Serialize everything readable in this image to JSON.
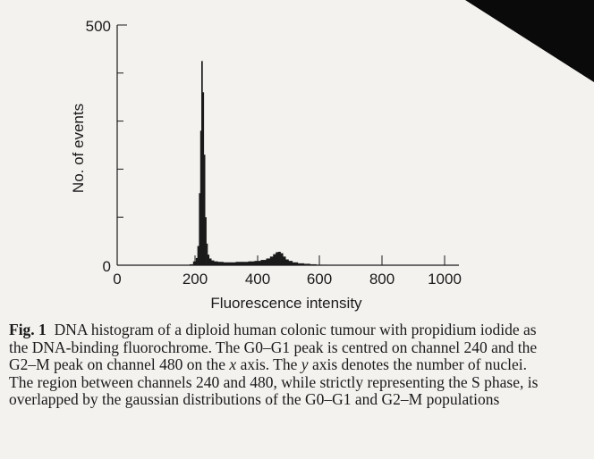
{
  "chart_data": {
    "type": "bar",
    "xlabel": "Fluorescence intensity",
    "ylabel": "No. of events",
    "xlim": [
      0,
      1000
    ],
    "ylim": [
      0,
      500
    ],
    "x_ticks": [
      "0",
      "200",
      "400",
      "600",
      "800",
      "1000"
    ],
    "y_ticks": [
      "0",
      "500"
    ],
    "grid": false,
    "legend": "none",
    "bar_color": "#1a1a1a",
    "bins": [
      {
        "x": 190,
        "y": 2
      },
      {
        "x": 200,
        "y": 8
      },
      {
        "x": 205,
        "y": 15
      },
      {
        "x": 210,
        "y": 40
      },
      {
        "x": 215,
        "y": 150
      },
      {
        "x": 218,
        "y": 280
      },
      {
        "x": 222,
        "y": 425
      },
      {
        "x": 226,
        "y": 360
      },
      {
        "x": 230,
        "y": 230
      },
      {
        "x": 234,
        "y": 100
      },
      {
        "x": 238,
        "y": 45
      },
      {
        "x": 242,
        "y": 22
      },
      {
        "x": 248,
        "y": 14
      },
      {
        "x": 256,
        "y": 10
      },
      {
        "x": 265,
        "y": 8
      },
      {
        "x": 280,
        "y": 7
      },
      {
        "x": 300,
        "y": 6
      },
      {
        "x": 320,
        "y": 6
      },
      {
        "x": 340,
        "y": 7
      },
      {
        "x": 360,
        "y": 7
      },
      {
        "x": 380,
        "y": 8
      },
      {
        "x": 400,
        "y": 9
      },
      {
        "x": 420,
        "y": 11
      },
      {
        "x": 435,
        "y": 14
      },
      {
        "x": 445,
        "y": 18
      },
      {
        "x": 455,
        "y": 23
      },
      {
        "x": 462,
        "y": 27
      },
      {
        "x": 470,
        "y": 28
      },
      {
        "x": 478,
        "y": 25
      },
      {
        "x": 486,
        "y": 18
      },
      {
        "x": 495,
        "y": 12
      },
      {
        "x": 505,
        "y": 9
      },
      {
        "x": 520,
        "y": 6
      },
      {
        "x": 540,
        "y": 4
      },
      {
        "x": 560,
        "y": 3
      },
      {
        "x": 580,
        "y": 2
      },
      {
        "x": 600,
        "y": 1
      },
      {
        "x": 620,
        "y": 1
      }
    ]
  },
  "caption": {
    "label": "Fig. 1",
    "part1": "DNA histogram of a diploid human colonic tumour with propidium iodide as the DNA-binding fluorochrome. The G0–G1 peak is centred on channel 240 and the G2–M peak on channel 480 on the ",
    "x_word": "x",
    "part2": " axis. The ",
    "y_word": "y",
    "part3": " axis denotes the number of nuclei. The region between channels 240 and 480, while strictly representing the S phase, is overlapped by the gaussian distributions of the G0–G1 and G2–M populations"
  }
}
